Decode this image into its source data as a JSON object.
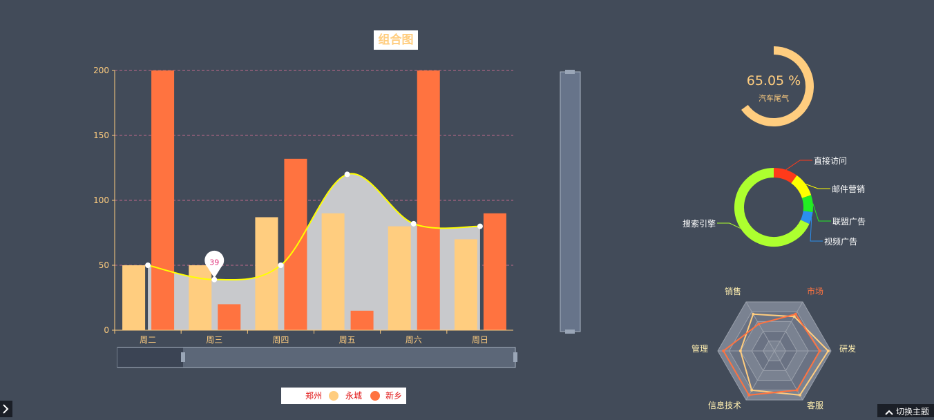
{
  "title": "组合图",
  "theme_button": "切换主题",
  "legend": [
    "郑州",
    "永城",
    "新乡"
  ],
  "colors": {
    "background": "#424b59",
    "zhengzhou": "#c8c9cc",
    "yongcheng": "#ffcd7f",
    "xinxiang": "#ff7340",
    "line": "#ffff00",
    "grid": "#c0688a",
    "legend_text": "#e01010"
  },
  "chart_data": [
    {
      "type": "bar",
      "categories": [
        "周二",
        "周三",
        "周四",
        "周五",
        "周六",
        "周日"
      ],
      "ylim": [
        0,
        200
      ],
      "yticks": [
        0,
        50,
        100,
        150,
        200
      ],
      "series": [
        {
          "name": "永城",
          "type": "bar",
          "values": [
            50,
            50,
            87,
            90,
            80,
            70
          ]
        },
        {
          "name": "新乡",
          "type": "bar",
          "values": [
            200,
            20,
            132,
            15,
            200,
            90
          ]
        },
        {
          "name": "郑州",
          "type": "area",
          "values": [
            50,
            39,
            50,
            120,
            82,
            80
          ]
        }
      ],
      "annotations": [
        {
          "category": "周三",
          "value": 39,
          "label": "39"
        }
      ]
    },
    {
      "type": "gauge",
      "value": 65.05,
      "value_label": "65.05 %",
      "label": "汽车尾气"
    },
    {
      "type": "pie",
      "categories": [
        "直接访问",
        "邮件营销",
        "联盟广告",
        "视频广告",
        "搜索引擎"
      ],
      "values": [
        10,
        10,
        7,
        5,
        68
      ],
      "colors": [
        "#ff3a1a",
        "#ffff00",
        "#22ee22",
        "#2b8ff0",
        "#adff2f"
      ]
    },
    {
      "type": "radar",
      "indicators": [
        "销售",
        "市场",
        "研发",
        "客服",
        "信息技术",
        "管理"
      ],
      "series": [
        {
          "values": [
            0.75,
            0.7,
            0.95,
            0.9,
            0.8,
            0.6
          ],
          "color": "#ffcd7f"
        },
        {
          "values": [
            0.55,
            0.75,
            0.8,
            0.8,
            0.9,
            0.9
          ],
          "color": "#ff7340"
        }
      ]
    }
  ]
}
